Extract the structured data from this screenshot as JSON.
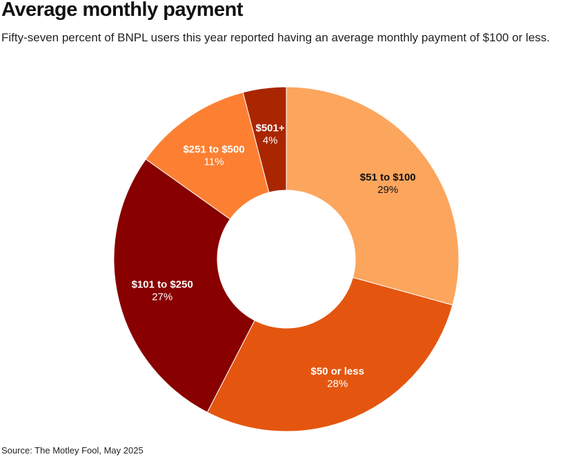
{
  "chart_data": {
    "type": "pie",
    "title": "Average monthly payment",
    "subtitle": "Fifty-seven percent of BNPL users this year reported having an average monthly payment of $100 or less.",
    "source": "Source: The Motley Fool, May 2025",
    "donut": true,
    "slices": [
      {
        "label": "$51 to $100",
        "value": 29,
        "value_label": "29%",
        "color": "#fca55d",
        "text_color": "#111111"
      },
      {
        "label": "$50 or less",
        "value": 28,
        "value_label": "28%",
        "color": "#e4560f",
        "text_color": "#ffffff"
      },
      {
        "label": "$101 to $250",
        "value": 27,
        "value_label": "27%",
        "color": "#880000",
        "text_color": "#ffffff"
      },
      {
        "label": "$251 to $500",
        "value": 11,
        "value_label": "11%",
        "color": "#fd8032",
        "text_color": "#ffffff"
      },
      {
        "label": "$501+",
        "value": 4,
        "value_label": "4%",
        "color": "#a92600",
        "text_color": "#ffffff"
      }
    ]
  }
}
